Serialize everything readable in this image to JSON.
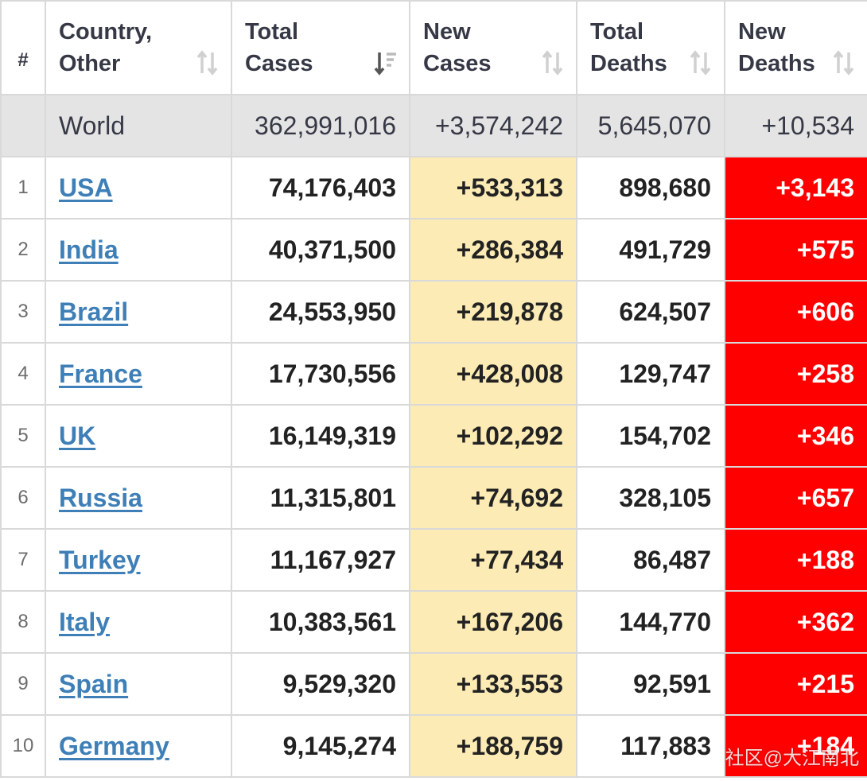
{
  "header": {
    "rank": "#",
    "country": [
      "Country,",
      "Other"
    ],
    "total_cases": [
      "Total",
      "Cases"
    ],
    "new_cases": [
      "New",
      "Cases"
    ],
    "total_deaths": [
      "Total",
      "Deaths"
    ],
    "new_deaths": [
      "New",
      "Deaths"
    ]
  },
  "world": {
    "name": "World",
    "total_cases": "362,991,016",
    "new_cases": "+3,574,242",
    "total_deaths": "5,645,070",
    "new_deaths": "+10,534"
  },
  "rows": [
    {
      "rank": "1",
      "country": "USA",
      "total_cases": "74,176,403",
      "new_cases": "+533,313",
      "total_deaths": "898,680",
      "new_deaths": "+3,143"
    },
    {
      "rank": "2",
      "country": "India",
      "total_cases": "40,371,500",
      "new_cases": "+286,384",
      "total_deaths": "491,729",
      "new_deaths": "+575"
    },
    {
      "rank": "3",
      "country": "Brazil",
      "total_cases": "24,553,950",
      "new_cases": "+219,878",
      "total_deaths": "624,507",
      "new_deaths": "+606"
    },
    {
      "rank": "4",
      "country": "France",
      "total_cases": "17,730,556",
      "new_cases": "+428,008",
      "total_deaths": "129,747",
      "new_deaths": "+258"
    },
    {
      "rank": "5",
      "country": "UK",
      "total_cases": "16,149,319",
      "new_cases": "+102,292",
      "total_deaths": "154,702",
      "new_deaths": "+346"
    },
    {
      "rank": "6",
      "country": "Russia",
      "total_cases": "11,315,801",
      "new_cases": "+74,692",
      "total_deaths": "328,105",
      "new_deaths": "+657"
    },
    {
      "rank": "7",
      "country": "Turkey",
      "total_cases": "11,167,927",
      "new_cases": "+77,434",
      "total_deaths": "86,487",
      "new_deaths": "+188"
    },
    {
      "rank": "8",
      "country": "Italy",
      "total_cases": "10,383,561",
      "new_cases": "+167,206",
      "total_deaths": "144,770",
      "new_deaths": "+362"
    },
    {
      "rank": "9",
      "country": "Spain",
      "total_cases": "9,529,320",
      "new_cases": "+133,553",
      "total_deaths": "92,591",
      "new_deaths": "+215"
    },
    {
      "rank": "10",
      "country": "Germany",
      "total_cases": "9,145,274",
      "new_cases": "+188,759",
      "total_deaths": "117,883",
      "new_deaths": "+184"
    }
  ],
  "watermark": "社区@大江南北",
  "colors": {
    "new_cases_bg": "#fcebb5",
    "new_deaths_bg": "#ff0000",
    "link": "#3e7fb7",
    "world_bg": "#e4e4e4"
  }
}
